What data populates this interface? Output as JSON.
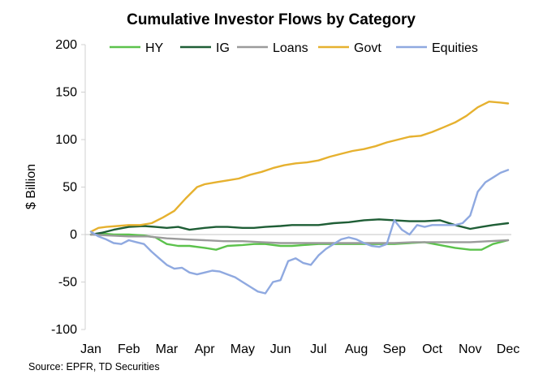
{
  "chart_data": {
    "type": "line",
    "title": "Cumulative Investor Flows by Category",
    "xlabel": "",
    "ylabel": "$ Billion",
    "ylim": [
      -100,
      200
    ],
    "yticks": [
      -100,
      -50,
      0,
      50,
      100,
      150,
      200
    ],
    "categories": [
      "Jan",
      "Feb",
      "Mar",
      "Apr",
      "May",
      "Jun",
      "Jul",
      "Aug",
      "Sep",
      "Oct",
      "Nov",
      "Dec"
    ],
    "legend_position": "top",
    "source": "Source: EPFR, TD Securities",
    "series": [
      {
        "name": "HY",
        "color": "#5cc24c",
        "x": [
          0,
          0.3,
          0.6,
          1.0,
          1.4,
          1.7,
          2.0,
          2.3,
          2.6,
          3.0,
          3.3,
          3.6,
          4.0,
          4.3,
          4.6,
          5.0,
          5.3,
          5.6,
          6.0,
          6.4,
          6.8,
          7.2,
          7.6,
          8.0,
          8.4,
          8.8,
          9.2,
          9.6,
          10.0,
          10.3,
          10.6,
          11.0
        ],
        "values": [
          0,
          1,
          0,
          0,
          -1,
          -3,
          -10,
          -12,
          -12,
          -14,
          -16,
          -12,
          -11,
          -10,
          -10,
          -12,
          -12,
          -11,
          -10,
          -10,
          -10,
          -10,
          -10,
          -10,
          -9,
          -8,
          -11,
          -14,
          -16,
          -16,
          -10,
          -6
        ]
      },
      {
        "name": "IG",
        "color": "#1f5e36",
        "x": [
          0,
          0.3,
          0.6,
          1.0,
          1.4,
          1.7,
          2.0,
          2.3,
          2.6,
          3.0,
          3.3,
          3.6,
          4.0,
          4.3,
          4.6,
          5.0,
          5.3,
          5.6,
          6.0,
          6.4,
          6.8,
          7.2,
          7.6,
          8.0,
          8.4,
          8.8,
          9.2,
          9.6,
          10.0,
          10.3,
          10.6,
          11.0
        ],
        "values": [
          0,
          2,
          5,
          8,
          9,
          8,
          7,
          8,
          5,
          7,
          8,
          8,
          7,
          7,
          8,
          9,
          10,
          10,
          10,
          12,
          13,
          15,
          16,
          15,
          14,
          14,
          15,
          10,
          6,
          8,
          10,
          12
        ]
      },
      {
        "name": "Loans",
        "color": "#9b9b9b",
        "x": [
          0,
          0.5,
          1.0,
          1.5,
          2.0,
          2.5,
          3.0,
          3.5,
          4.0,
          4.5,
          5.0,
          5.5,
          6.0,
          6.5,
          7.0,
          7.5,
          8.0,
          8.5,
          9.0,
          9.5,
          10.0,
          10.5,
          11.0
        ],
        "values": [
          0,
          -1,
          -2,
          -2,
          -4,
          -5,
          -6,
          -7,
          -7,
          -8,
          -9,
          -9,
          -9,
          -9,
          -9,
          -9,
          -9,
          -8,
          -8,
          -8,
          -8,
          -7,
          -6
        ]
      },
      {
        "name": "Govt",
        "color": "#e6b12f",
        "x": [
          0,
          0.2,
          0.4,
          0.7,
          1.0,
          1.3,
          1.6,
          1.9,
          2.2,
          2.5,
          2.8,
          3.0,
          3.3,
          3.6,
          3.9,
          4.2,
          4.5,
          4.8,
          5.1,
          5.4,
          5.7,
          6.0,
          6.3,
          6.6,
          6.9,
          7.2,
          7.5,
          7.8,
          8.1,
          8.4,
          8.7,
          9.0,
          9.3,
          9.6,
          9.9,
          10.2,
          10.5,
          10.8,
          11.0
        ],
        "values": [
          3,
          7,
          8,
          9,
          10,
          10,
          12,
          18,
          25,
          38,
          50,
          53,
          55,
          57,
          59,
          63,
          66,
          70,
          73,
          75,
          76,
          78,
          82,
          85,
          88,
          90,
          93,
          97,
          100,
          103,
          104,
          108,
          113,
          118,
          125,
          134,
          140,
          139,
          138
        ]
      },
      {
        "name": "Equities",
        "color": "#8fa9e0",
        "x": [
          0,
          0.2,
          0.4,
          0.6,
          0.8,
          1.0,
          1.2,
          1.4,
          1.6,
          1.8,
          2.0,
          2.2,
          2.4,
          2.6,
          2.8,
          3.0,
          3.2,
          3.4,
          3.6,
          3.8,
          4.0,
          4.2,
          4.4,
          4.6,
          4.8,
          5.0,
          5.2,
          5.4,
          5.6,
          5.8,
          6.0,
          6.2,
          6.4,
          6.6,
          6.8,
          7.0,
          7.2,
          7.4,
          7.6,
          7.8,
          8.0,
          8.2,
          8.4,
          8.6,
          8.8,
          9.0,
          9.2,
          9.4,
          9.6,
          9.8,
          10.0,
          10.2,
          10.4,
          10.6,
          10.8,
          11.0
        ],
        "values": [
          3,
          -2,
          -5,
          -9,
          -10,
          -6,
          -8,
          -10,
          -18,
          -25,
          -32,
          -36,
          -35,
          -40,
          -42,
          -40,
          -38,
          -39,
          -42,
          -45,
          -50,
          -55,
          -60,
          -62,
          -50,
          -48,
          -28,
          -25,
          -30,
          -32,
          -22,
          -15,
          -10,
          -5,
          -3,
          -5,
          -9,
          -12,
          -13,
          -10,
          15,
          5,
          0,
          10,
          8,
          10,
          10,
          10,
          10,
          12,
          20,
          45,
          55,
          60,
          65,
          68
        ]
      }
    ]
  }
}
